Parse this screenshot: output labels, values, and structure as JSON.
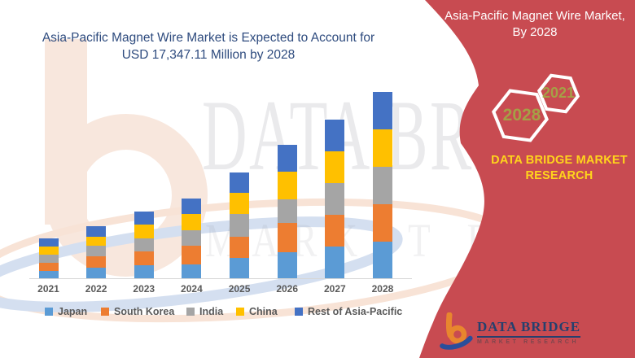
{
  "left_title": {
    "line1": "Asia-Pacific Magnet Wire Market is Expected to Account for",
    "line2": "USD 17,347.11 Million by 2028",
    "color": "#2E4B7E"
  },
  "right_panel": {
    "background_color": "#C84B51",
    "title_line1": "Asia-Pacific Magnet Wire Market,",
    "title_line2": "By 2028",
    "hexagon_back_label": "2028",
    "hexagon_front_label": "2021",
    "hex_label_color": "#A5A046",
    "brand_line1": "DATA BRIDGE MARKET",
    "brand_line2": "RESEARCH",
    "brand_color": "#FFD41C"
  },
  "logo": {
    "name": "DATA BRIDGE",
    "subtitle": "MARKET RESEARCH"
  },
  "watermark": {
    "line1": "DATA BRIDGE",
    "line2": "MARKET RESEARCH"
  },
  "chart_data": {
    "type": "bar",
    "stacked": true,
    "title": "Asia-Pacific Magnet Wire Market, USD Million (values estimated from bar heights; 2028 total labeled as USD 17,347.11 Million)",
    "categories": [
      "2021",
      "2022",
      "2023",
      "2024",
      "2025",
      "2026",
      "2027",
      "2028"
    ],
    "series": [
      {
        "name": "Japan",
        "color": "#5B9BD5",
        "values": [
          660,
          960,
          1210,
          1270,
          1900,
          2400,
          2940,
          3410
        ]
      },
      {
        "name": "South Korea",
        "color": "#ED7D31",
        "values": [
          760,
          1060,
          1270,
          1790,
          1970,
          2780,
          2960,
          3490
        ]
      },
      {
        "name": "India",
        "color": "#A5A5A5",
        "values": [
          760,
          1010,
          1260,
          1440,
          2100,
          2180,
          2980,
          3490
        ]
      },
      {
        "name": "China",
        "color": "#FFC000",
        "values": [
          780,
          830,
          1270,
          1470,
          2020,
          2580,
          2960,
          3470
        ]
      },
      {
        "name": "Rest of Asia-Pacific",
        "color": "#4472C4",
        "values": [
          735,
          1020,
          1190,
          1490,
          1895,
          2480,
          2975,
          3487
        ]
      }
    ],
    "totals": [
      3695,
      4880,
      6200,
      7460,
      9885,
      12420,
      14815,
      17347
    ],
    "ylim": [
      0,
      17500
    ],
    "y_axis_visible": false,
    "gridlines": false,
    "data_labels": false,
    "legend_position": "bottom"
  }
}
